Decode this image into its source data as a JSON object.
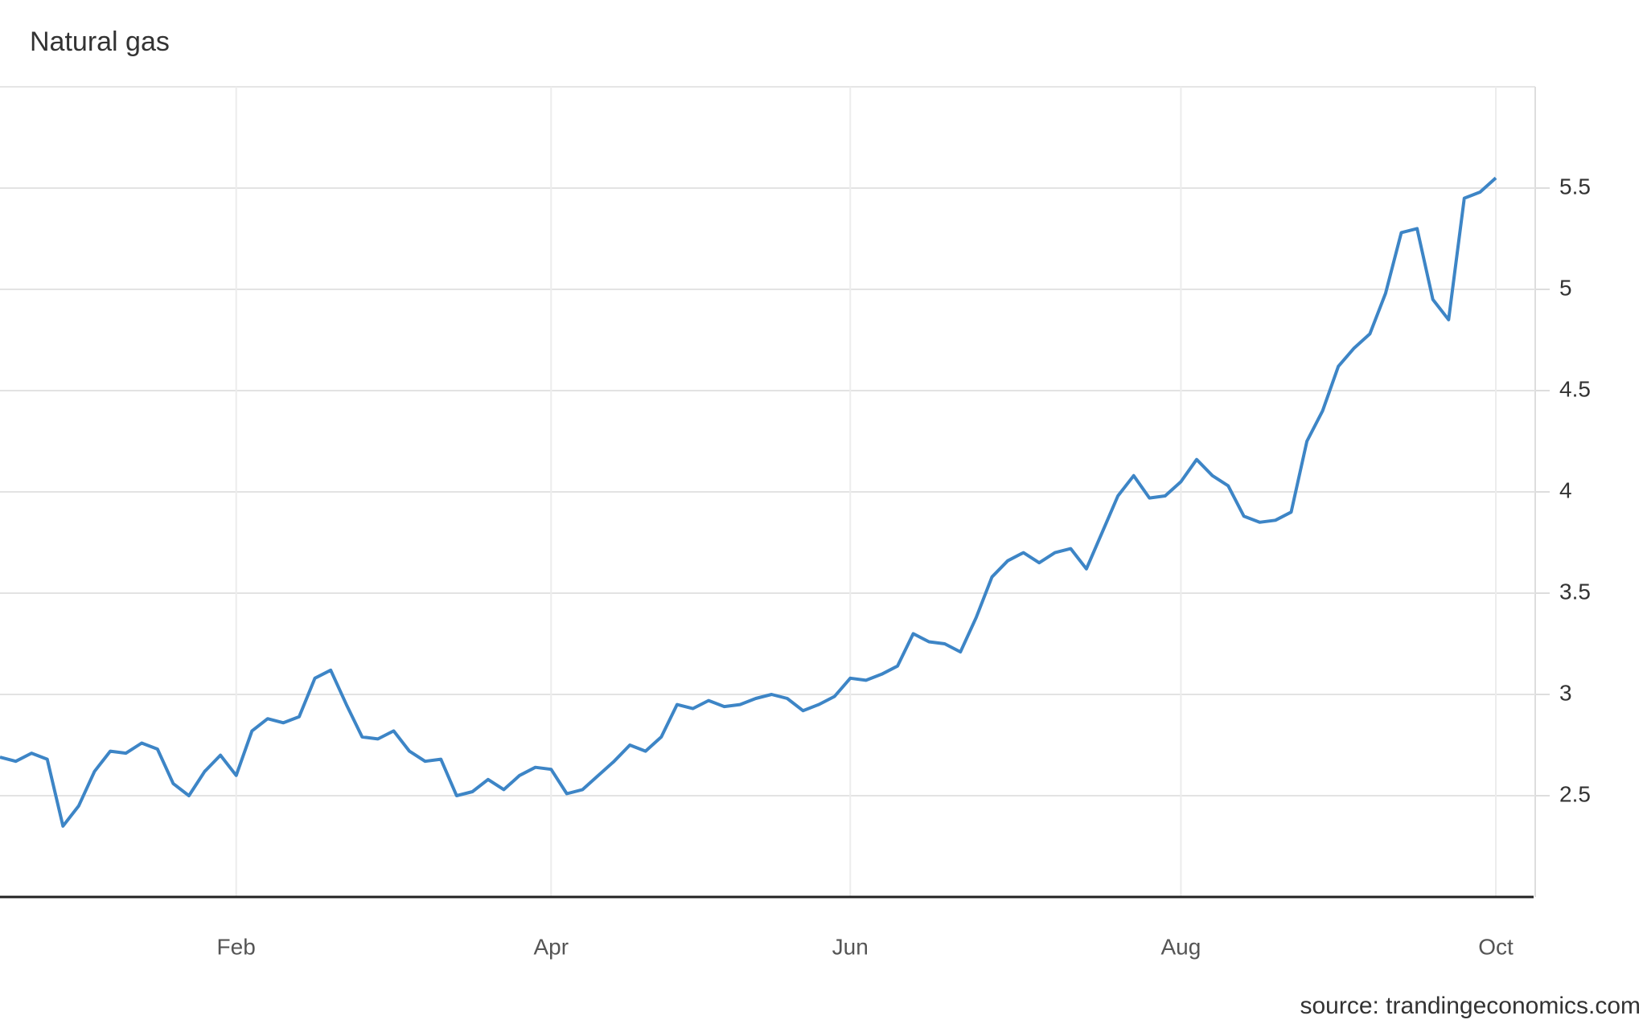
{
  "chart_data": {
    "type": "line",
    "title": "Natural gas",
    "source": "source: trandingeconomics.com",
    "categories": [
      null,
      null,
      null,
      null,
      null,
      null,
      null,
      null,
      null,
      null,
      null,
      null,
      null,
      null,
      null,
      "Feb",
      null,
      null,
      null,
      null,
      null,
      null,
      null,
      null,
      null,
      null,
      null,
      null,
      null,
      null,
      null,
      null,
      null,
      null,
      null,
      "Apr",
      null,
      null,
      null,
      null,
      null,
      null,
      null,
      null,
      null,
      null,
      null,
      null,
      null,
      null,
      null,
      null,
      null,
      null,
      "Jun",
      null,
      null,
      null,
      null,
      null,
      null,
      null,
      null,
      null,
      null,
      null,
      null,
      null,
      null,
      null,
      null,
      null,
      null,
      null,
      null,
      "Aug",
      null,
      null,
      null,
      null,
      null,
      null,
      null,
      null,
      null,
      null,
      null,
      null,
      null,
      null,
      null,
      null,
      null,
      null,
      null,
      "Oct"
    ],
    "series": [
      {
        "name": "Natural gas",
        "color": "#3d85c6",
        "values": [
          2.69,
          2.67,
          2.71,
          2.68,
          2.35,
          2.45,
          2.62,
          2.72,
          2.71,
          2.76,
          2.73,
          2.56,
          2.5,
          2.62,
          2.7,
          2.6,
          2.82,
          2.88,
          2.86,
          2.89,
          3.08,
          3.12,
          2.95,
          2.79,
          2.78,
          2.82,
          2.72,
          2.67,
          2.68,
          2.5,
          2.52,
          2.58,
          2.53,
          2.6,
          2.64,
          2.63,
          2.51,
          2.53,
          2.6,
          2.67,
          2.75,
          2.72,
          2.79,
          2.95,
          2.93,
          2.97,
          2.94,
          2.95,
          2.98,
          3.0,
          2.98,
          2.92,
          2.95,
          2.99,
          3.08,
          3.07,
          3.1,
          3.14,
          3.3,
          3.26,
          3.25,
          3.21,
          3.38,
          3.58,
          3.66,
          3.7,
          3.65,
          3.7,
          3.72,
          3.62,
          3.8,
          3.98,
          4.08,
          3.97,
          3.98,
          4.05,
          4.16,
          4.08,
          4.03,
          3.88,
          3.85,
          3.86,
          3.9,
          4.25,
          4.4,
          4.62,
          4.71,
          4.78,
          4.98,
          5.28,
          5.3,
          4.95,
          4.85,
          5.45,
          5.48,
          5.55
        ]
      }
    ],
    "ylim": [
      2,
      6
    ],
    "yticks": [
      2.5,
      3,
      3.5,
      4,
      4.5,
      5,
      5.5
    ],
    "grid": true
  }
}
